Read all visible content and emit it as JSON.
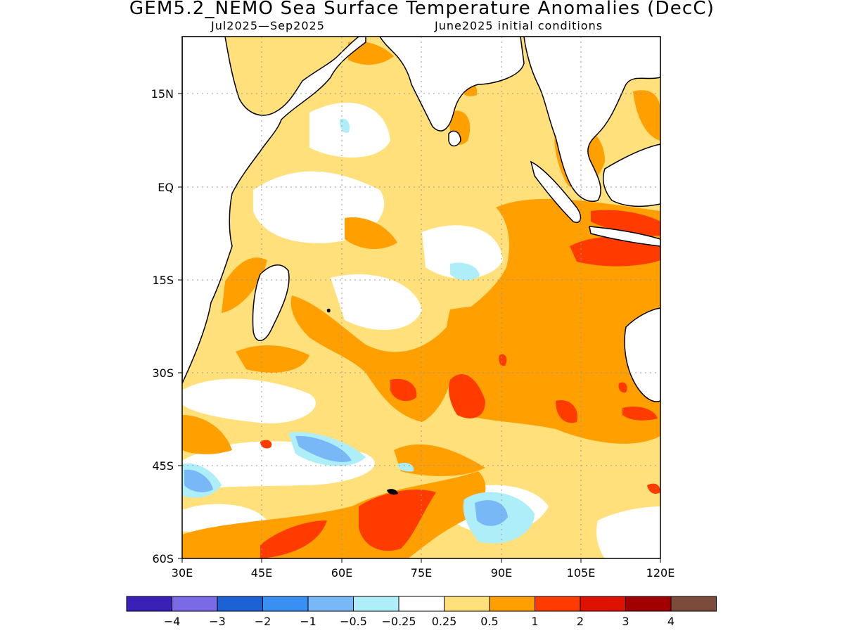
{
  "header": {
    "title": "GEM5.2_NEMO Sea Surface Temperature Anomalies (DecC)",
    "period": "Jul2025—Sep2025",
    "init": "June2025 initial conditions"
  },
  "map": {
    "region": "Indian Ocean",
    "lon_range": [
      30,
      120
    ],
    "lat_range": [
      -60,
      24
    ],
    "lat_ticks": [
      "15N",
      "EQ",
      "15S",
      "30S",
      "45S",
      "60S"
    ],
    "lon_ticks": [
      "30E",
      "45E",
      "60E",
      "75E",
      "90E",
      "105E",
      "120E"
    ],
    "grid": "dotted"
  },
  "colorbar": {
    "labels": [
      "−4",
      "−3",
      "−2",
      "−1",
      "−0.5",
      "−0.25",
      "0.25",
      "0.5",
      "1",
      "2",
      "3",
      "4"
    ],
    "colors": [
      "#3b20b8",
      "#7a6ae6",
      "#1c62d4",
      "#3a90f2",
      "#78b8f6",
      "#aeeef8",
      "#ffffff",
      "#ffe07a",
      "#ff9f00",
      "#ff3b00",
      "#dd1200",
      "#a20000",
      "#7b4b3b"
    ]
  }
}
